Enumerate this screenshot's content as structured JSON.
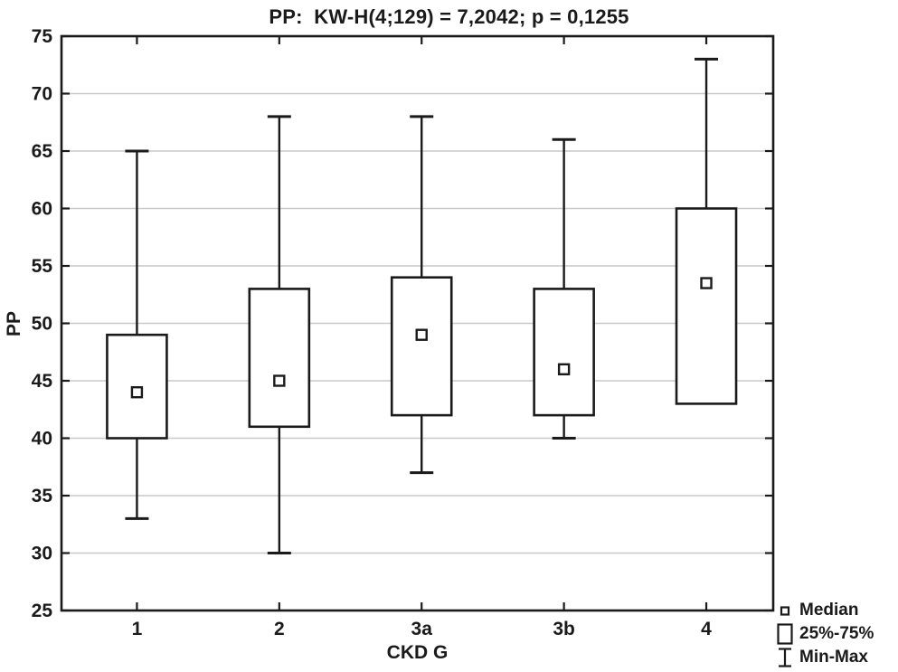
{
  "colors": {
    "ink": "#1a1a1a",
    "grid": "#c9c9c9",
    "background": "#ffffff"
  },
  "chart_data": {
    "type": "box",
    "title": "PP:  KW-H(4;129) = 7,2042; p = 0,1255",
    "xlabel": "CKD G",
    "ylabel": "PP",
    "ylim": [
      25,
      75
    ],
    "yticks": [
      25,
      30,
      35,
      40,
      45,
      50,
      55,
      60,
      65,
      70,
      75
    ],
    "grid": "horizontal",
    "categories": [
      "1",
      "2",
      "3a",
      "3b",
      "4"
    ],
    "series": [
      {
        "category": "1",
        "min": 33,
        "q1": 40,
        "median": 44,
        "q3": 49,
        "max": 65
      },
      {
        "category": "2",
        "min": 30,
        "q1": 41,
        "median": 45,
        "q3": 53,
        "max": 68
      },
      {
        "category": "3a",
        "min": 37,
        "q1": 42,
        "median": 49,
        "q3": 54,
        "max": 68
      },
      {
        "category": "3b",
        "min": 40,
        "q1": 42,
        "median": 46,
        "q3": 53,
        "max": 66
      },
      {
        "category": "4",
        "min": 43,
        "q1": 43,
        "median": 53.5,
        "q3": 60,
        "max": 73
      }
    ],
    "legend_position": "bottom-right-outside",
    "legend": [
      {
        "symbol": "median-square",
        "label": "Median"
      },
      {
        "symbol": "iqr-box",
        "label": "25%-75%"
      },
      {
        "symbol": "min-max-whisker",
        "label": "Min-Max"
      }
    ]
  }
}
